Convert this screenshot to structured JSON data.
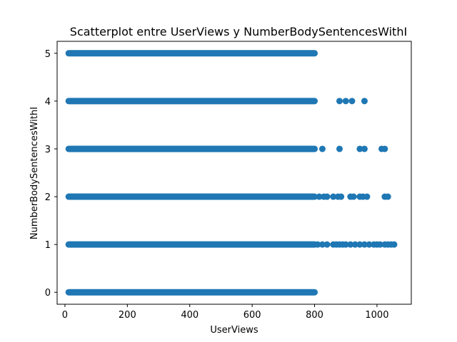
{
  "chart_data": {
    "type": "scatter",
    "title": "Scatterplot entre UserViews y NumberBodySentencesWithI",
    "xlabel": "UserViews",
    "ylabel": "NumberBodySentencesWithI",
    "xlim": [
      -25,
      1110
    ],
    "ylim": [
      -0.25,
      5.25
    ],
    "x_ticks": [
      0,
      200,
      400,
      600,
      800,
      1000
    ],
    "y_ticks": [
      0,
      1,
      2,
      3,
      4,
      5
    ],
    "grid": false,
    "marker_color": "#1f77b4",
    "bands": [
      {
        "y": 0,
        "x_start": 12,
        "x_end": 800
      },
      {
        "y": 1,
        "x_start": 12,
        "x_end": 800
      },
      {
        "y": 2,
        "x_start": 12,
        "x_end": 800
      },
      {
        "y": 3,
        "x_start": 12,
        "x_end": 800
      },
      {
        "y": 4,
        "x_start": 12,
        "x_end": 800
      },
      {
        "y": 5,
        "x_start": 12,
        "x_end": 800
      }
    ],
    "outliers": [
      {
        "x": 880,
        "y": 4
      },
      {
        "x": 900,
        "y": 4
      },
      {
        "x": 920,
        "y": 4
      },
      {
        "x": 960,
        "y": 4
      },
      {
        "x": 825,
        "y": 3
      },
      {
        "x": 880,
        "y": 3
      },
      {
        "x": 945,
        "y": 3
      },
      {
        "x": 960,
        "y": 3
      },
      {
        "x": 1015,
        "y": 3
      },
      {
        "x": 1025,
        "y": 3
      },
      {
        "x": 815,
        "y": 2
      },
      {
        "x": 830,
        "y": 2
      },
      {
        "x": 840,
        "y": 2
      },
      {
        "x": 860,
        "y": 2
      },
      {
        "x": 875,
        "y": 2
      },
      {
        "x": 885,
        "y": 2
      },
      {
        "x": 915,
        "y": 2
      },
      {
        "x": 925,
        "y": 2
      },
      {
        "x": 945,
        "y": 2
      },
      {
        "x": 955,
        "y": 2
      },
      {
        "x": 968,
        "y": 2
      },
      {
        "x": 1025,
        "y": 2
      },
      {
        "x": 1035,
        "y": 2
      },
      {
        "x": 810,
        "y": 1
      },
      {
        "x": 825,
        "y": 1
      },
      {
        "x": 840,
        "y": 1
      },
      {
        "x": 860,
        "y": 1
      },
      {
        "x": 870,
        "y": 1
      },
      {
        "x": 880,
        "y": 1
      },
      {
        "x": 890,
        "y": 1
      },
      {
        "x": 900,
        "y": 1
      },
      {
        "x": 915,
        "y": 1
      },
      {
        "x": 930,
        "y": 1
      },
      {
        "x": 945,
        "y": 1
      },
      {
        "x": 960,
        "y": 1
      },
      {
        "x": 975,
        "y": 1
      },
      {
        "x": 990,
        "y": 1
      },
      {
        "x": 1000,
        "y": 1
      },
      {
        "x": 1010,
        "y": 1
      },
      {
        "x": 1025,
        "y": 1
      },
      {
        "x": 1035,
        "y": 1
      },
      {
        "x": 1045,
        "y": 1
      },
      {
        "x": 1055,
        "y": 1
      }
    ]
  }
}
